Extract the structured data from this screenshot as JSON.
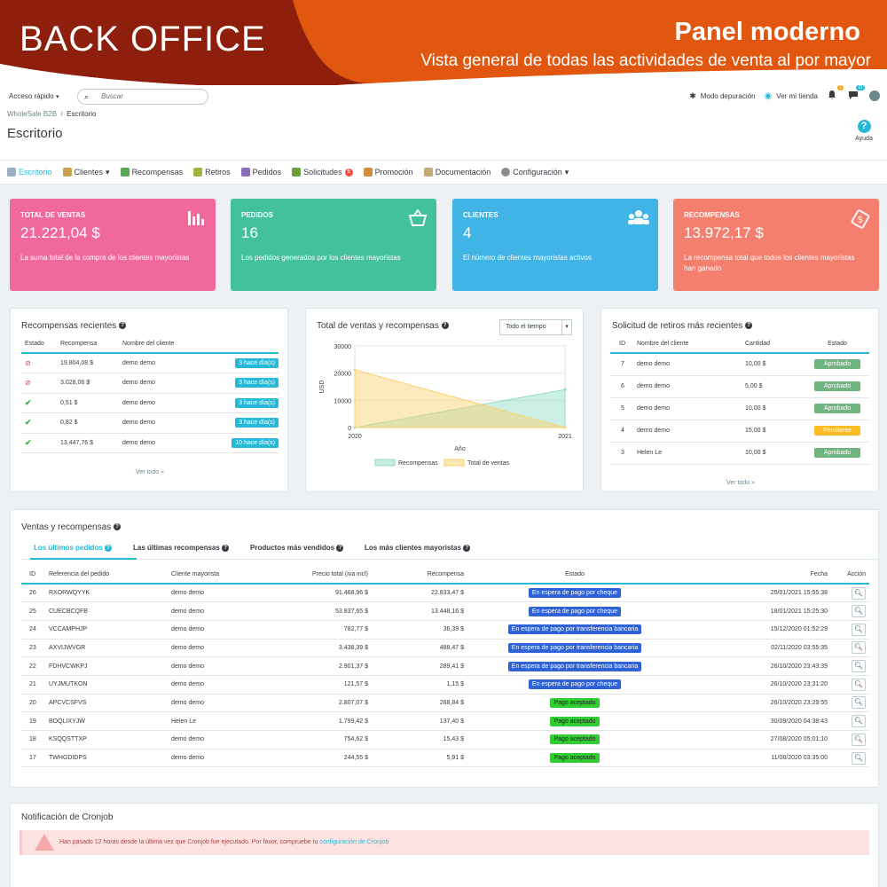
{
  "banner": {
    "title": "BACK OFFICE",
    "panel_title": "Panel moderno",
    "panel_subtitle": "Vista general de todas las actividades de venta al por mayor"
  },
  "header": {
    "quick_access": "Acceso rápido",
    "search_placeholder": "Buscar",
    "breadcrumb_parent": "WholeSale B2B",
    "breadcrumb_current": "Escritorio",
    "page_title": "Escritorio",
    "debug_mode": "Modo depuración",
    "view_store": "Ver mi tienda",
    "notif_orders": "1",
    "notif_messages": "21",
    "help": "Ayuda"
  },
  "nav": {
    "items": [
      "Escritorio",
      "Clientes",
      "Recompensas",
      "Retiros",
      "Pedidos",
      "Solicitudes",
      "Promoción",
      "Documentación",
      "Configuración"
    ],
    "requests_count": "6"
  },
  "kpis": [
    {
      "title": "TOTAL DE VENTAS",
      "value": "21.221,04 $",
      "desc": "La suma total de la compra de los clientes mayoristas",
      "color": "#f1699b",
      "icon": "bar-chart-icon"
    },
    {
      "title": "PEDIDOS",
      "value": "16",
      "desc": "Los pedidos generados por los clientes mayoristas",
      "color": "#43c19c",
      "icon": "basket-icon"
    },
    {
      "title": "CLIENTES",
      "value": "4",
      "desc": "El número de clientes mayoristas activos",
      "color": "#3fb4e5",
      "icon": "users-icon"
    },
    {
      "title": "RECOMPENSAS",
      "value": "13.972,17 $",
      "desc": "La recompensa total que todos los clientes mayoristas han ganado",
      "color": "#f47f6f",
      "icon": "money-icon"
    }
  ],
  "recent_rewards": {
    "title": "Recompensas recientes",
    "columns": [
      "Estado",
      "Recompensa",
      "Nombre del cliente"
    ],
    "rows": [
      {
        "status": "cancel",
        "amount": "19.804,08 $",
        "client": "demo demo",
        "ago": "3 hace día(s)"
      },
      {
        "status": "cancel",
        "amount": "3.028,06 $",
        "client": "demo demo",
        "ago": "3 hace día(s)"
      },
      {
        "status": "ok",
        "amount": "0,51 $",
        "client": "demo demo",
        "ago": "3 hace día(s)"
      },
      {
        "status": "ok",
        "amount": "0,82 $",
        "client": "demo demo",
        "ago": "3 hace día(s)"
      },
      {
        "status": "ok",
        "amount": "13.447,76 $",
        "client": "demo demo",
        "ago": "10 hace día(s)"
      }
    ],
    "see_all": "Ver todo »"
  },
  "chart_panel": {
    "title": "Total de ventas y recompensas",
    "select": "Todo el tiempo"
  },
  "chart_data": {
    "type": "area",
    "x": [
      "2020",
      "2021"
    ],
    "xlabel": "Año",
    "ylabel": "USD",
    "ylim": [
      0,
      30000
    ],
    "yticks": [
      "30000",
      "20000",
      "10000",
      "0"
    ],
    "series": [
      {
        "name": "Recompensas",
        "values": [
          0,
          13972
        ],
        "color": "#8fdcc6"
      },
      {
        "name": "Total de ventas",
        "values": [
          21221,
          0
        ],
        "color": "#fbd06a"
      }
    ],
    "legend": "bottom"
  },
  "withdrawals": {
    "title": "Solicitud de retiros más recientes",
    "columns": [
      "ID",
      "Nombre del cliente",
      "Cantidad",
      "Estado"
    ],
    "rows": [
      {
        "id": "7",
        "client": "demo demo",
        "amount": "10,00 $",
        "state": "Aprobado",
        "kind": "green"
      },
      {
        "id": "6",
        "client": "demo demo",
        "amount": "5,00 $",
        "state": "Aprobado",
        "kind": "green"
      },
      {
        "id": "5",
        "client": "demo demo",
        "amount": "10,00 $",
        "state": "Aprobado",
        "kind": "green"
      },
      {
        "id": "4",
        "client": "demo demo",
        "amount": "15,00 $",
        "state": "Pendiente",
        "kind": "orange"
      },
      {
        "id": "3",
        "client": "Helen Le",
        "amount": "10,00 $",
        "state": "Aprobado",
        "kind": "green"
      }
    ],
    "see_all": "Ver todo »"
  },
  "sales": {
    "title": "Ventas y recompensas",
    "tabs": [
      "Los últimos pedidos",
      "Las últimas recompensas",
      "Productos más vendidos",
      "Los más clientes mayoristas"
    ],
    "columns": [
      "ID",
      "Referencia del pedido",
      "Cliente mayorista",
      "Precio total (iva incl)",
      "Recompensa",
      "Estado",
      "Fecha",
      "Acción"
    ],
    "rows": [
      {
        "id": "26",
        "ref": "RXORWQYYK",
        "client": "demo demo",
        "total": "91.468,96 $",
        "reward": "22.833,47 $",
        "state": "En espera de pago por cheque",
        "kind": "navy",
        "date": "25/01/2021 15:55:38"
      },
      {
        "id": "25",
        "ref": "CUECBCQFB",
        "client": "demo demo",
        "total": "53.837,65 $",
        "reward": "13.448,16 $",
        "state": "En espera de pago por cheque",
        "kind": "navy",
        "date": "18/01/2021 15:25:30"
      },
      {
        "id": "24",
        "ref": "VCCAMPHJP",
        "client": "demo demo",
        "total": "782,77 $",
        "reward": "36,39 $",
        "state": "En espera de pago por transferencia bancaria",
        "kind": "navy",
        "date": "15/12/2020 01:52:29"
      },
      {
        "id": "23",
        "ref": "AXVIJWVGR",
        "client": "demo demo",
        "total": "3.438,39 $",
        "reward": "488,47 $",
        "state": "En espera de pago por transferencia bancaria",
        "kind": "navy",
        "date": "02/11/2020 03:55:35"
      },
      {
        "id": "22",
        "ref": "FDHVCWKPJ",
        "client": "demo demo",
        "total": "2.901,37 $",
        "reward": "289,41 $",
        "state": "En espera de pago por transferencia bancaria",
        "kind": "navy",
        "date": "26/10/2020 23:43:39"
      },
      {
        "id": "21",
        "ref": "UYJMUTKON",
        "client": "demo demo",
        "total": "121,57 $",
        "reward": "1,15 $",
        "state": "En espera de pago por cheque",
        "kind": "navy",
        "date": "26/10/2020 23:31:20"
      },
      {
        "id": "20",
        "ref": "APCVCSFVS",
        "client": "demo demo",
        "total": "2.807,07 $",
        "reward": "268,84 $",
        "state": "Pago aceptado",
        "kind": "lgreen",
        "date": "26/10/2020 23:29:55"
      },
      {
        "id": "19",
        "ref": "BOQLIXYJW",
        "client": "Helen Le",
        "total": "1.799,42 $",
        "reward": "137,40 $",
        "state": "Pago aceptado",
        "kind": "lgreen",
        "date": "30/09/2020 04:38:43"
      },
      {
        "id": "18",
        "ref": "KSQQSTTXP",
        "client": "demo demo",
        "total": "754,62 $",
        "reward": "15,43 $",
        "state": "Pago aceptado",
        "kind": "lgreen",
        "date": "27/08/2020 05:01:10"
      },
      {
        "id": "17",
        "ref": "TWHGDIDPS",
        "client": "demo demo",
        "total": "244,55 $",
        "reward": "5,91 $",
        "state": "Pago aceptado",
        "kind": "lgreen",
        "date": "11/08/2020 03:35:00"
      }
    ]
  },
  "cron": {
    "title": "Notificación de Cronjob",
    "message": "Han pasado 12 horas desde la última vez que Cronjob fue ejecutado. Por favor, compruebe tu",
    "link": "configuración de Cronjob"
  }
}
